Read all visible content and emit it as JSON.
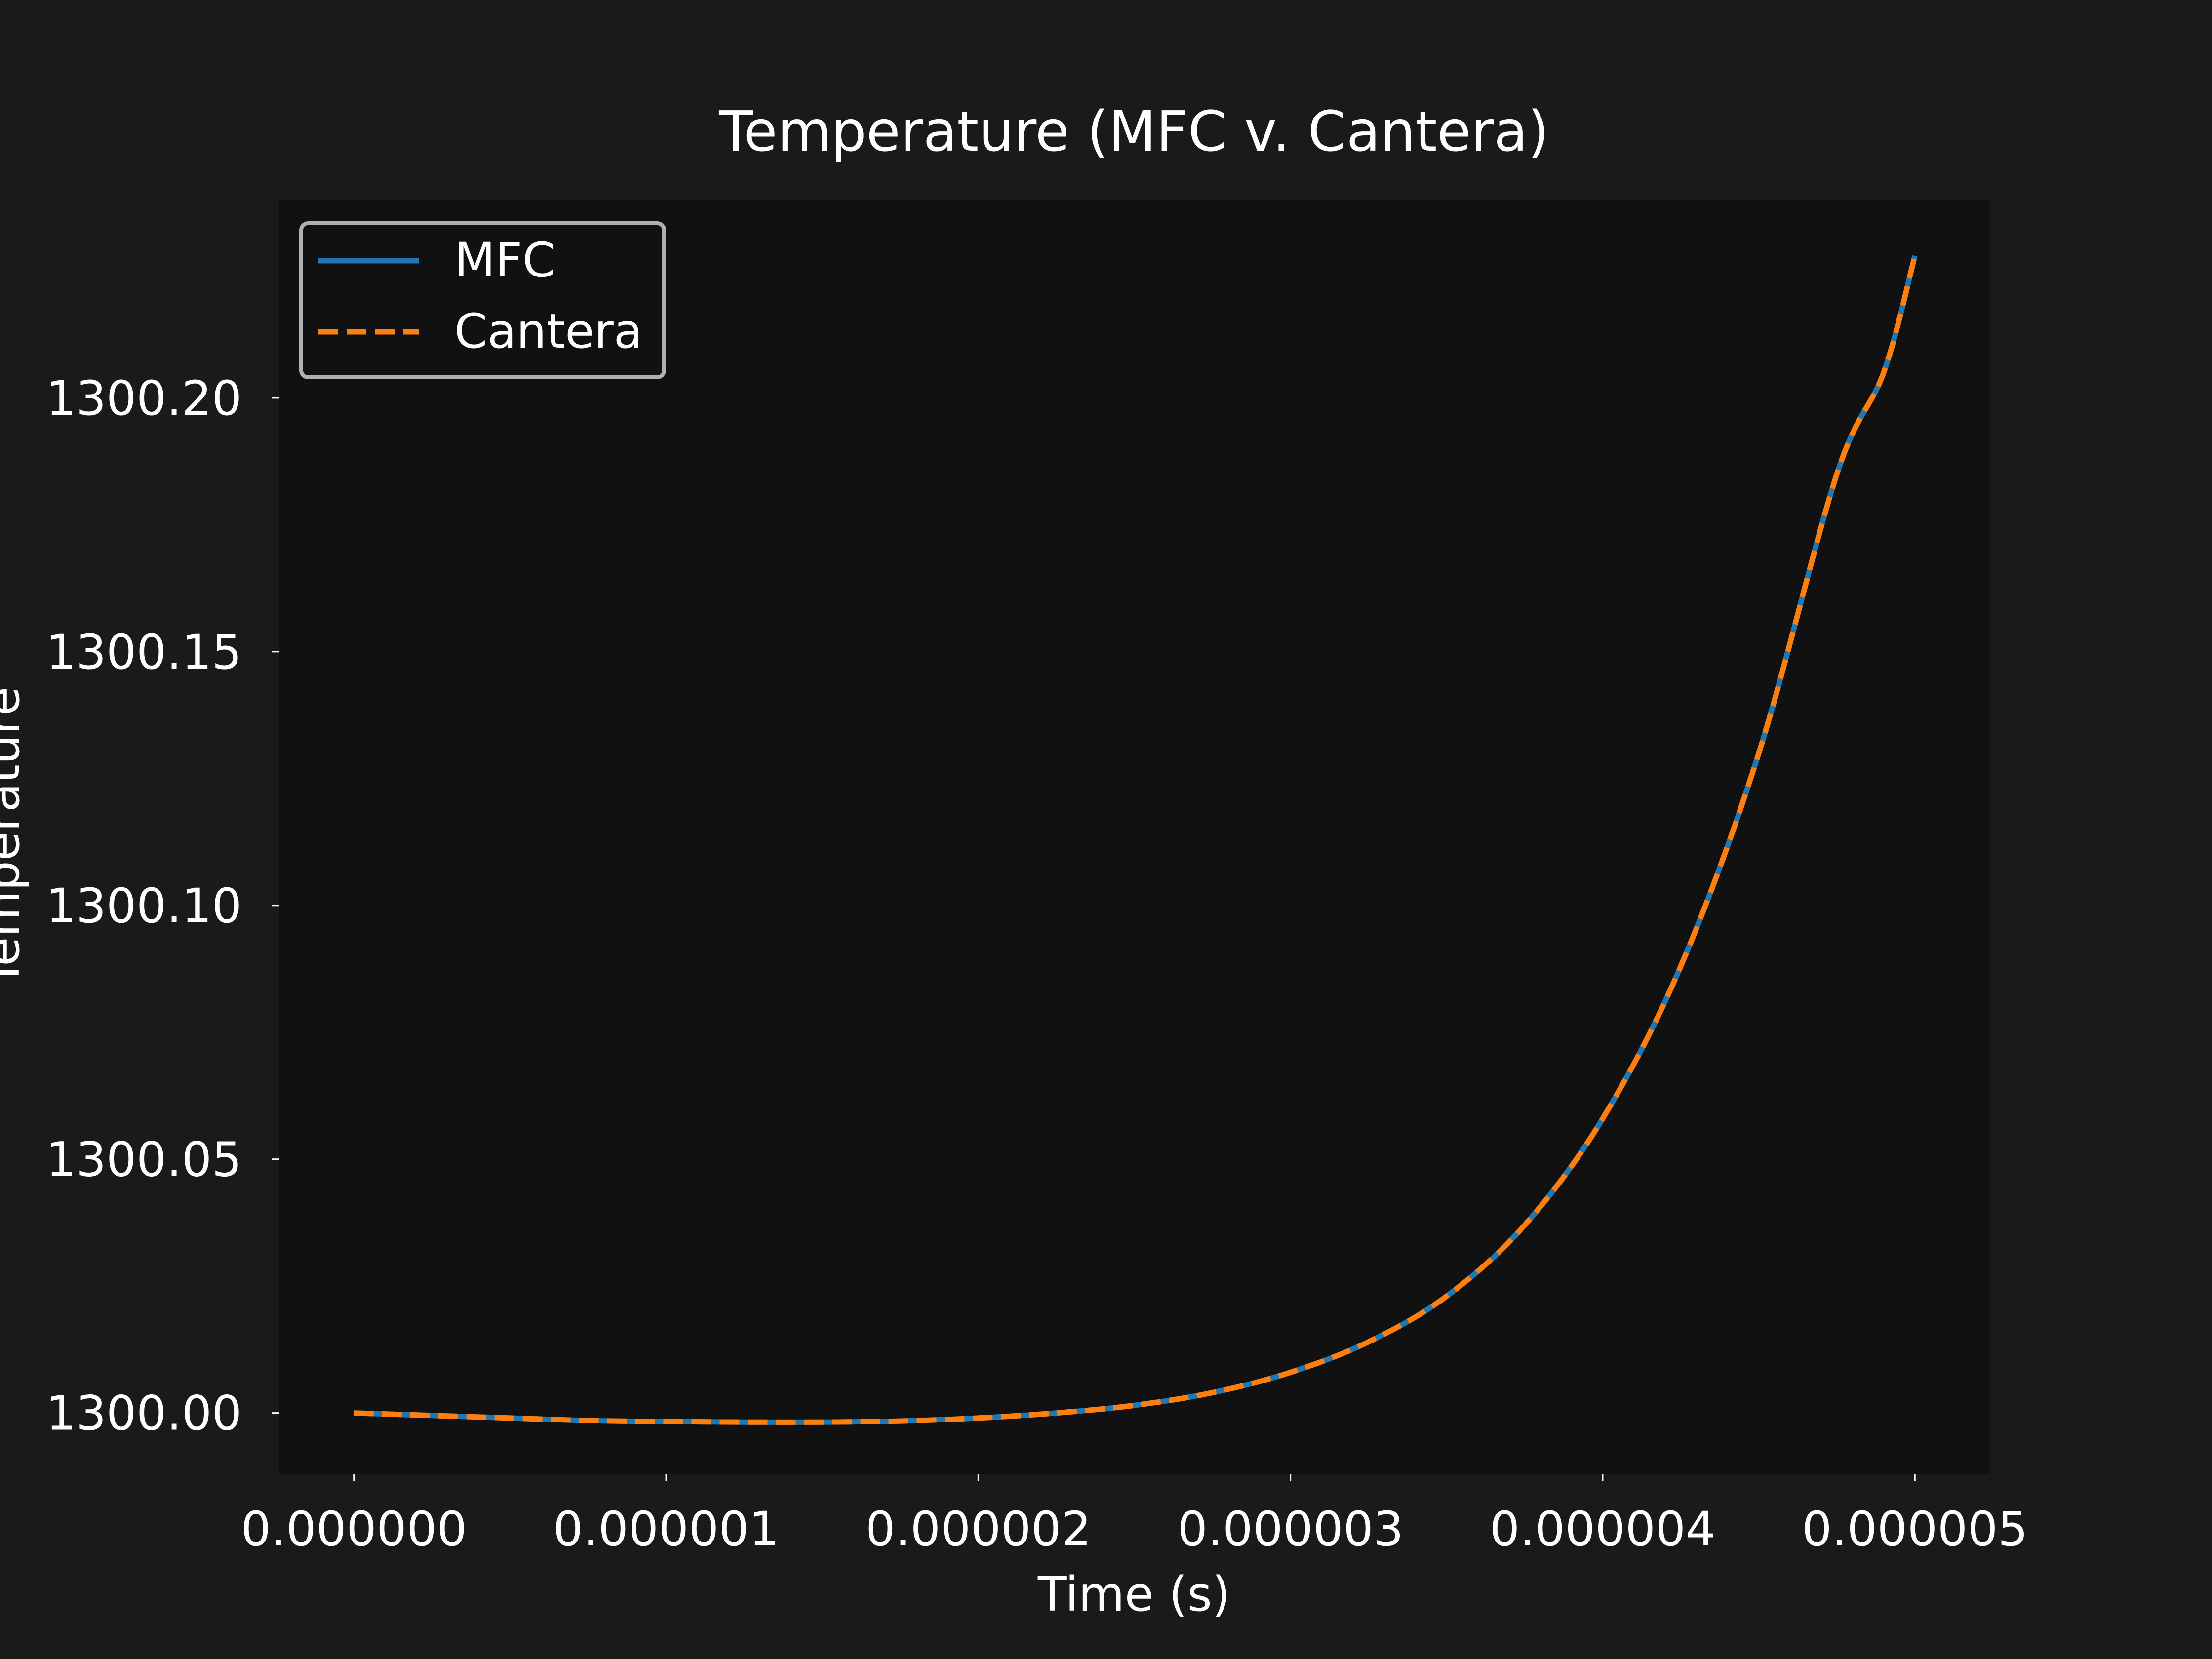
{
  "colors": {
    "figure_bg": "#1a1a1a",
    "axes_bg": "#111111",
    "mfc": "#1f77b4",
    "cantera": "#ff7f0e",
    "text": "#ffffff",
    "legend_edge": "#b0b0b0"
  },
  "chart_data": {
    "type": "line",
    "title": "Temperature (MFC v. Cantera)",
    "xlabel": "Time (s)",
    "ylabel": "Temperature",
    "xlim": [
      -2.4e-07,
      5.24e-06
    ],
    "ylim": [
      1299.988,
      1300.239
    ],
    "xticks": [
      0,
      1e-06,
      2e-06,
      3e-06,
      4e-06,
      5e-06
    ],
    "xtick_labels": [
      "0.000000",
      "0.000001",
      "0.000002",
      "0.000003",
      "0.000004",
      "0.000005"
    ],
    "yticks": [
      1300.0,
      1300.05,
      1300.1,
      1300.15,
      1300.2
    ],
    "ytick_labels": [
      "1300.00",
      "1300.05",
      "1300.10",
      "1300.15",
      "1300.20"
    ],
    "grid": false,
    "legend": "top-left",
    "x": [
      0,
      2.5e-07,
      5e-07,
      7.5e-07,
      1e-06,
      1.25e-06,
      1.5e-06,
      1.75e-06,
      2e-06,
      2.25e-06,
      2.5e-06,
      2.75e-06,
      3e-06,
      3.25e-06,
      3.5e-06,
      3.75e-06,
      4e-06,
      4.25e-06,
      4.5e-06,
      4.75e-06,
      4.9e-06,
      5e-06
    ],
    "series": [
      {
        "name": "MFC",
        "style": "solid",
        "values": [
          1300.0,
          1299.9995,
          1299.999,
          1299.9985,
          1299.9983,
          1299.9982,
          1299.9982,
          1299.9984,
          1299.999,
          1300.0,
          1300.0015,
          1300.004,
          1300.008,
          1300.014,
          1300.023,
          1300.037,
          1300.058,
          1300.088,
          1300.13,
          1300.185,
          1300.205,
          1300.228
        ]
      },
      {
        "name": "Cantera",
        "style": "dashed",
        "values": [
          1300.0,
          1299.9995,
          1299.999,
          1299.9985,
          1299.9983,
          1299.9982,
          1299.9982,
          1299.9984,
          1299.999,
          1300.0,
          1300.0015,
          1300.004,
          1300.008,
          1300.014,
          1300.023,
          1300.037,
          1300.058,
          1300.088,
          1300.13,
          1300.185,
          1300.205,
          1300.228
        ]
      }
    ]
  }
}
